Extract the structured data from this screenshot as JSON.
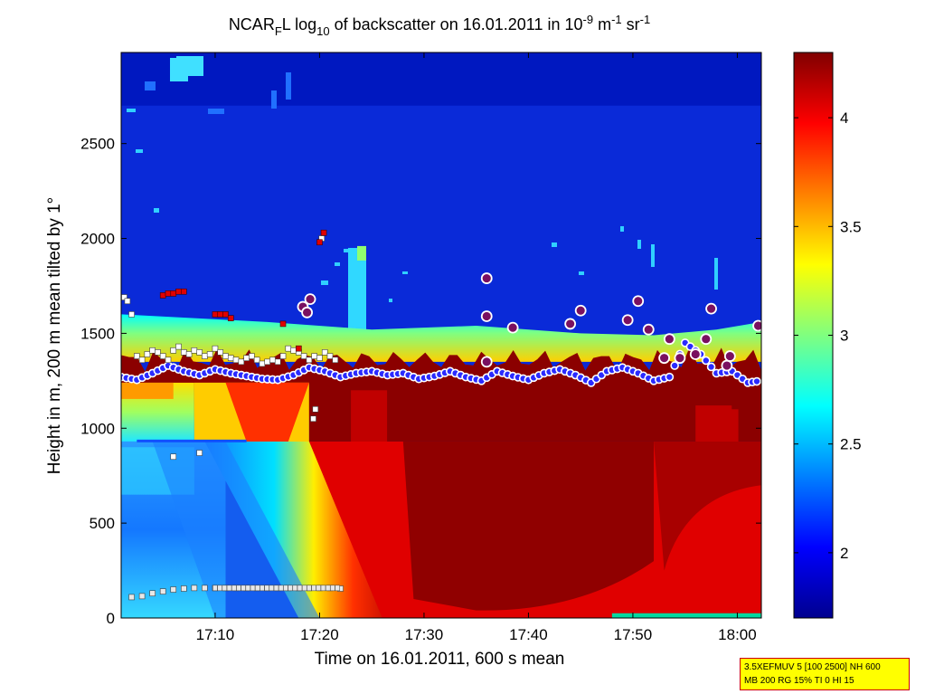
{
  "title": {
    "main_prefix": "NCAR",
    "main_sub": "F",
    "main_mid": "L log",
    "main_sub2": "10",
    "main_rest": " of backscatter on 16.01.2011 in 10",
    "sup1": "-9",
    "unit1": " m",
    "sup2": "-1",
    "unit2": " sr",
    "sup3": "-1"
  },
  "info_box": {
    "line1": "3.5XEFMUV 5 [100 2500] NH 600",
    "line2": "MB 200 RG 15% TI 0 HI 15"
  },
  "colors": {
    "colormap": "jet",
    "cloud_marker_face": "#2a2aff",
    "cloud_marker_edge": "#ffffff",
    "square_marker_face": "#ffffff",
    "red_marker_face": "#e00000"
  },
  "chart_data": {
    "type": "heatmap",
    "xlabel": "Time on 16.01.2011, 600 s mean",
    "ylabel": "Height in m, 200 m mean tilted by 1°",
    "x_range_minutes": [
      61,
      122.3
    ],
    "xticks": [
      {
        "label": "17:10",
        "minutes": 70
      },
      {
        "label": "17:20",
        "minutes": 80
      },
      {
        "label": "17:30",
        "minutes": 90
      },
      {
        "label": "17:40",
        "minutes": 100
      },
      {
        "label": "17:50",
        "minutes": 110
      },
      {
        "label": "18:00",
        "minutes": 120
      }
    ],
    "ylim": [
      0,
      2980
    ],
    "yticks": [
      0,
      500,
      1000,
      1500,
      2000,
      2500
    ],
    "colorbar": {
      "range": [
        1.7,
        4.3
      ],
      "ticks": [
        2,
        2.5,
        3,
        3.5,
        4
      ],
      "tick_labels": [
        "2",
        "2.5",
        "3",
        "3.5",
        "4"
      ]
    },
    "cloud_base_series": [
      {
        "t": 61.0,
        "h": 1270
      },
      {
        "t": 62.5,
        "h": 1255
      },
      {
        "t": 64.0,
        "h": 1290
      },
      {
        "t": 65.5,
        "h": 1330
      },
      {
        "t": 67.0,
        "h": 1300
      },
      {
        "t": 68.5,
        "h": 1280
      },
      {
        "t": 70.0,
        "h": 1310
      },
      {
        "t": 71.5,
        "h": 1290
      },
      {
        "t": 73.0,
        "h": 1275
      },
      {
        "t": 74.5,
        "h": 1260
      },
      {
        "t": 76.0,
        "h": 1255
      },
      {
        "t": 77.5,
        "h": 1280
      },
      {
        "t": 79.0,
        "h": 1320
      },
      {
        "t": 80.5,
        "h": 1300
      },
      {
        "t": 82.0,
        "h": 1270
      },
      {
        "t": 83.5,
        "h": 1290
      },
      {
        "t": 85.0,
        "h": 1300
      },
      {
        "t": 86.5,
        "h": 1280
      },
      {
        "t": 88.0,
        "h": 1290
      },
      {
        "t": 89.5,
        "h": 1260
      },
      {
        "t": 91.0,
        "h": 1275
      },
      {
        "t": 92.5,
        "h": 1300
      },
      {
        "t": 94.0,
        "h": 1270
      },
      {
        "t": 95.5,
        "h": 1250
      },
      {
        "t": 97.0,
        "h": 1300
      },
      {
        "t": 98.5,
        "h": 1275
      },
      {
        "t": 100.0,
        "h": 1255
      },
      {
        "t": 101.5,
        "h": 1290
      },
      {
        "t": 103.0,
        "h": 1310
      },
      {
        "t": 104.5,
        "h": 1280
      },
      {
        "t": 106.0,
        "h": 1240
      },
      {
        "t": 107.5,
        "h": 1300
      },
      {
        "t": 109.0,
        "h": 1320
      },
      {
        "t": 110.5,
        "h": 1290
      },
      {
        "t": 112.0,
        "h": 1250
      },
      {
        "t": 113.5,
        "h": 1270
      },
      {
        "t": 115.0,
        "h": 1450
      },
      {
        "t": 116.5,
        "h": 1390
      },
      {
        "t": 118.0,
        "h": 1290
      },
      {
        "t": 119.5,
        "h": 1300
      },
      {
        "t": 121.0,
        "h": 1240
      },
      {
        "t": 122.3,
        "h": 1250
      }
    ],
    "cloud_isolated_points": [
      {
        "t": 78.4,
        "h": 1640
      },
      {
        "t": 79.1,
        "h": 1680
      },
      {
        "t": 78.8,
        "h": 1610
      },
      {
        "t": 96.0,
        "h": 1790
      },
      {
        "t": 96.0,
        "h": 1590
      },
      {
        "t": 96.0,
        "h": 1350
      },
      {
        "t": 98.5,
        "h": 1530
      },
      {
        "t": 104.0,
        "h": 1550
      },
      {
        "t": 105.0,
        "h": 1620
      },
      {
        "t": 109.5,
        "h": 1570
      },
      {
        "t": 110.5,
        "h": 1670
      },
      {
        "t": 111.5,
        "h": 1520
      },
      {
        "t": 113.5,
        "h": 1470
      },
      {
        "t": 113.0,
        "h": 1370
      },
      {
        "t": 114.5,
        "h": 1370
      },
      {
        "t": 116.0,
        "h": 1390
      },
      {
        "t": 117.0,
        "h": 1470
      },
      {
        "t": 117.5,
        "h": 1630
      },
      {
        "t": 119.0,
        "h": 1330
      },
      {
        "t": 119.3,
        "h": 1380
      },
      {
        "t": 122.0,
        "h": 1540
      }
    ],
    "square_points_upper": [
      {
        "t": 61.3,
        "h": 1690
      },
      {
        "t": 61.6,
        "h": 1670
      },
      {
        "t": 62.0,
        "h": 1600
      },
      {
        "t": 62.5,
        "h": 1380
      },
      {
        "t": 63.0,
        "h": 1360
      },
      {
        "t": 63.5,
        "h": 1390
      },
      {
        "t": 64.0,
        "h": 1410
      },
      {
        "t": 64.5,
        "h": 1400
      },
      {
        "t": 65.0,
        "h": 1380
      },
      {
        "t": 65.5,
        "h": 1360
      },
      {
        "t": 66.0,
        "h": 1410
      },
      {
        "t": 66.5,
        "h": 1430
      },
      {
        "t": 67.0,
        "h": 1400
      },
      {
        "t": 67.5,
        "h": 1390
      },
      {
        "t": 68.0,
        "h": 1410
      },
      {
        "t": 68.5,
        "h": 1400
      },
      {
        "t": 69.0,
        "h": 1380
      },
      {
        "t": 69.5,
        "h": 1390
      },
      {
        "t": 70.0,
        "h": 1420
      },
      {
        "t": 70.5,
        "h": 1400
      },
      {
        "t": 71.0,
        "h": 1380
      },
      {
        "t": 71.5,
        "h": 1370
      },
      {
        "t": 72.0,
        "h": 1360
      },
      {
        "t": 72.5,
        "h": 1350
      },
      {
        "t": 73.0,
        "h": 1370
      },
      {
        "t": 73.5,
        "h": 1380
      },
      {
        "t": 74.0,
        "h": 1360
      },
      {
        "t": 74.5,
        "h": 1340
      },
      {
        "t": 75.0,
        "h": 1350
      },
      {
        "t": 75.5,
        "h": 1360
      },
      {
        "t": 76.0,
        "h": 1350
      },
      {
        "t": 76.5,
        "h": 1380
      },
      {
        "t": 77.0,
        "h": 1420
      },
      {
        "t": 77.5,
        "h": 1410
      },
      {
        "t": 78.0,
        "h": 1400
      },
      {
        "t": 78.5,
        "h": 1380
      },
      {
        "t": 79.0,
        "h": 1360
      },
      {
        "t": 79.5,
        "h": 1380
      },
      {
        "t": 80.0,
        "h": 1370
      },
      {
        "t": 80.5,
        "h": 1400
      },
      {
        "t": 81.0,
        "h": 1380
      },
      {
        "t": 81.5,
        "h": 1360
      },
      {
        "t": 80.2,
        "h": 2000
      },
      {
        "t": 79.6,
        "h": 1100
      },
      {
        "t": 79.4,
        "h": 1050
      },
      {
        "t": 66.0,
        "h": 850
      },
      {
        "t": 68.5,
        "h": 870
      }
    ],
    "square_points_red": [
      {
        "t": 65.0,
        "h": 1700
      },
      {
        "t": 65.5,
        "h": 1710
      },
      {
        "t": 66.0,
        "h": 1710
      },
      {
        "t": 66.5,
        "h": 1720
      },
      {
        "t": 67.0,
        "h": 1720
      },
      {
        "t": 70.0,
        "h": 1600
      },
      {
        "t": 70.5,
        "h": 1600
      },
      {
        "t": 71.0,
        "h": 1600
      },
      {
        "t": 71.5,
        "h": 1580
      },
      {
        "t": 80.0,
        "h": 1980
      },
      {
        "t": 80.4,
        "h": 2030
      },
      {
        "t": 76.5,
        "h": 1550
      },
      {
        "t": 78.0,
        "h": 1420
      }
    ],
    "square_points_lower": [
      {
        "t": 62.0,
        "h": 110
      },
      {
        "t": 63.0,
        "h": 115
      },
      {
        "t": 64.0,
        "h": 130
      },
      {
        "t": 65.0,
        "h": 140
      },
      {
        "t": 66.0,
        "h": 150
      },
      {
        "t": 67.0,
        "h": 155
      },
      {
        "t": 68.0,
        "h": 158
      },
      {
        "t": 69.0,
        "h": 158
      },
      {
        "t": 70.0,
        "h": 158
      },
      {
        "t": 71.0,
        "h": 158
      },
      {
        "t": 72.0,
        "h": 158
      },
      {
        "t": 73.0,
        "h": 158
      },
      {
        "t": 74.0,
        "h": 158
      },
      {
        "t": 75.0,
        "h": 158
      },
      {
        "t": 76.0,
        "h": 158
      },
      {
        "t": 77.0,
        "h": 158
      },
      {
        "t": 78.0,
        "h": 158
      },
      {
        "t": 79.0,
        "h": 158
      },
      {
        "t": 80.0,
        "h": 158
      },
      {
        "t": 81.0,
        "h": 158
      },
      {
        "t": 82.0,
        "h": 155
      }
    ]
  }
}
